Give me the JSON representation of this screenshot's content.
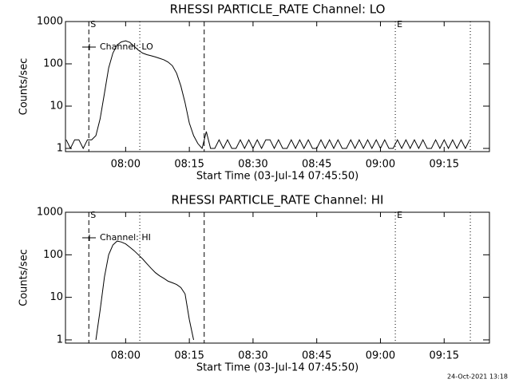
{
  "chart_data": [
    {
      "type": "line",
      "title": "RHESSI PARTICLE_RATE Channel: LO",
      "xlabel": "Start Time (03-Jul-14 07:45:50)",
      "ylabel": "Counts/sec",
      "x": [
        "07:46",
        "07:47",
        "07:48",
        "07:49",
        "07:50",
        "07:51",
        "07:52",
        "07:53",
        "07:54",
        "07:55",
        "07:56",
        "07:57",
        "07:58",
        "07:59",
        "08:00",
        "08:01",
        "08:02",
        "08:03",
        "08:04",
        "08:05",
        "08:06",
        "08:07",
        "08:08",
        "08:09",
        "08:10",
        "08:11",
        "08:12",
        "08:13",
        "08:14",
        "08:15",
        "08:16",
        "08:17",
        "08:18",
        "08:19",
        "08:20",
        "08:21",
        "08:22",
        "08:23",
        "08:24",
        "08:25",
        "08:26",
        "08:27",
        "08:28",
        "08:29",
        "08:30",
        "08:31",
        "08:32",
        "08:33",
        "08:34",
        "08:35",
        "08:36",
        "08:37",
        "08:38",
        "08:39",
        "08:40",
        "08:41",
        "08:42",
        "08:43",
        "08:44",
        "08:45",
        "08:46",
        "08:47",
        "08:48",
        "08:49",
        "08:50",
        "08:51",
        "08:52",
        "08:53",
        "08:54",
        "08:55",
        "08:56",
        "08:57",
        "08:58",
        "08:59",
        "09:00",
        "09:01",
        "09:02",
        "09:03",
        "09:04",
        "09:05",
        "09:06",
        "09:07",
        "09:08",
        "09:09",
        "09:10",
        "09:11",
        "09:12",
        "09:13",
        "09:14",
        "09:15",
        "09:16",
        "09:17",
        "09:18",
        "09:19",
        "09:20",
        "09:21"
      ],
      "series": [
        {
          "name": "Channel: LO",
          "color": "#000000",
          "values": [
            1.6,
            1,
            1.6,
            1.6,
            1,
            1.6,
            1.6,
            2,
            5,
            20,
            80,
            180,
            280,
            330,
            350,
            320,
            260,
            210,
            180,
            165,
            155,
            145,
            135,
            125,
            110,
            90,
            60,
            30,
            12,
            4,
            2,
            1.3,
            1,
            2.5,
            1,
            1,
            1.6,
            1,
            1.6,
            1,
            1,
            1.6,
            1,
            1.6,
            1,
            1.6,
            1,
            1.6,
            1.6,
            1,
            1.6,
            1,
            1,
            1.6,
            1,
            1.6,
            1,
            1.6,
            1,
            1,
            1.6,
            1,
            1.6,
            1,
            1.6,
            1,
            1,
            1.6,
            1,
            1.6,
            1,
            1.6,
            1,
            1.6,
            1,
            1.6,
            1,
            1,
            1.6,
            1,
            1.6,
            1,
            1.6,
            1,
            1.6,
            1,
            1,
            1.6,
            1,
            1.6,
            1,
            1.6,
            1,
            1.6,
            1,
            1.6
          ]
        }
      ],
      "xlim": [
        "07:45:50",
        "09:25:40"
      ],
      "xticks": [
        "08:00",
        "08:15",
        "08:30",
        "08:45",
        "09:00",
        "09:15"
      ],
      "ylim": [
        0.84,
        1000
      ],
      "yticks": [
        1,
        10,
        100,
        1000
      ],
      "log_y": true,
      "legend": "upper left",
      "markers": [
        {
          "time": "07:51:20",
          "style": "dashed",
          "label": "S"
        },
        {
          "time": "08:03:20",
          "style": "dotted"
        },
        {
          "time": "08:18:30",
          "style": "dashed"
        },
        {
          "time": "09:03:30",
          "style": "dotted",
          "label": "E"
        },
        {
          "time": "09:21:10",
          "style": "dotted"
        }
      ]
    },
    {
      "type": "line",
      "title": "RHESSI PARTICLE_RATE Channel: HI",
      "xlabel": "Start Time (03-Jul-14 07:45:50)",
      "ylabel": "Counts/sec",
      "x": [
        "07:53",
        "07:54",
        "07:55",
        "07:56",
        "07:57",
        "07:58",
        "07:59",
        "08:00",
        "08:01",
        "08:02",
        "08:03",
        "08:04",
        "08:05",
        "08:06",
        "08:07",
        "08:08",
        "08:09",
        "08:10",
        "08:11",
        "08:12",
        "08:13",
        "08:14",
        "08:15",
        "08:16"
      ],
      "series": [
        {
          "name": "Channel: HI",
          "color": "#000000",
          "values": [
            1,
            5,
            30,
            100,
            170,
            210,
            200,
            180,
            150,
            125,
            100,
            80,
            62,
            48,
            38,
            32,
            28,
            24,
            22,
            20,
            17,
            12,
            3,
            1
          ]
        }
      ],
      "xlim": [
        "07:45:50",
        "09:25:40"
      ],
      "xticks": [
        "08:00",
        "08:15",
        "08:30",
        "08:45",
        "09:00",
        "09:15"
      ],
      "ylim": [
        0.84,
        1000
      ],
      "yticks": [
        1,
        10,
        100,
        1000
      ],
      "log_y": true,
      "legend": "upper left",
      "markers": [
        {
          "time": "07:51:20",
          "style": "dashed",
          "label": "S"
        },
        {
          "time": "08:03:20",
          "style": "dotted"
        },
        {
          "time": "08:18:30",
          "style": "dashed"
        },
        {
          "time": "09:03:30",
          "style": "dotted",
          "label": "E"
        },
        {
          "time": "09:21:10",
          "style": "dotted"
        }
      ]
    }
  ],
  "footer": "24-Oct-2021 13:18"
}
